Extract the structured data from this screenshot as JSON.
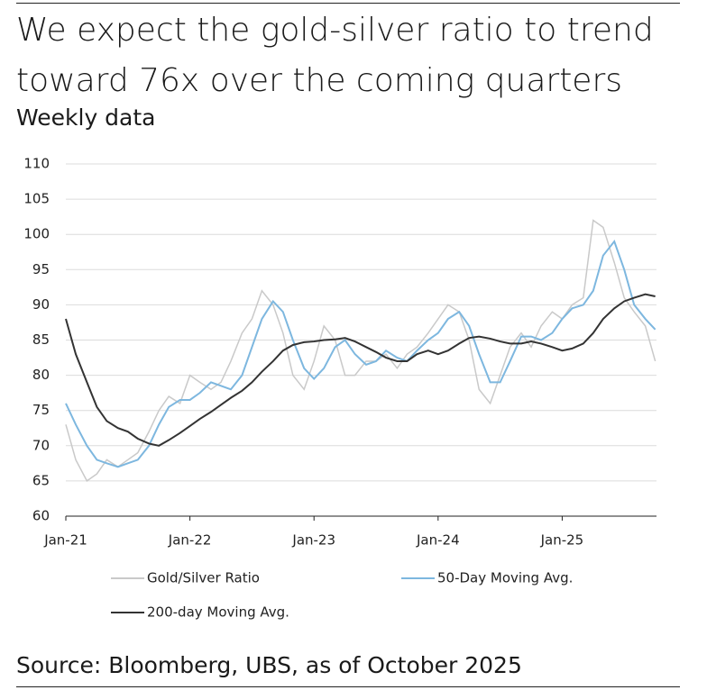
{
  "chart_data": {
    "type": "line",
    "title": "We expect the gold-silver ratio to trend toward 76x over the coming quarters",
    "subtitle": "Weekly data",
    "source": "Source: Bloomberg, UBS, as of October 2025",
    "x": [
      2021.0,
      2021.08,
      2021.17,
      2021.25,
      2021.33,
      2021.42,
      2021.5,
      2021.58,
      2021.67,
      2021.75,
      2021.83,
      2021.92,
      2022.0,
      2022.08,
      2022.17,
      2022.25,
      2022.33,
      2022.42,
      2022.5,
      2022.58,
      2022.67,
      2022.75,
      2022.83,
      2022.92,
      2023.0,
      2023.08,
      2023.17,
      2023.25,
      2023.33,
      2023.42,
      2023.5,
      2023.58,
      2023.67,
      2023.75,
      2023.83,
      2023.92,
      2024.0,
      2024.08,
      2024.17,
      2024.25,
      2024.33,
      2024.42,
      2024.5,
      2024.58,
      2024.67,
      2024.75,
      2024.83,
      2024.92,
      2025.0,
      2025.08,
      2025.17,
      2025.25,
      2025.33,
      2025.42,
      2025.5,
      2025.58,
      2025.67,
      2025.75
    ],
    "series": [
      {
        "name": "Gold/Silver Ratio",
        "color": "#c9c9c9",
        "values": [
          73,
          68,
          65,
          66,
          68,
          67,
          68,
          69,
          72,
          75,
          77,
          76,
          80,
          79,
          78,
          79,
          82,
          86,
          88,
          92,
          90,
          86,
          80,
          78,
          82,
          87,
          85,
          80,
          80,
          82,
          82,
          83,
          81,
          83,
          84,
          86,
          88,
          90,
          89,
          85,
          78,
          76,
          80,
          84,
          86,
          84,
          87,
          89,
          88,
          90,
          91,
          102,
          101,
          96,
          91,
          89,
          87,
          82
        ]
      },
      {
        "name": "50-Day Moving Avg.",
        "color": "#7db7df",
        "values": [
          76,
          73,
          70,
          68,
          67.5,
          67,
          67.5,
          68,
          70,
          73,
          75.5,
          76.5,
          76.5,
          77.5,
          79,
          78.5,
          78,
          80,
          84,
          88,
          90.5,
          89,
          85,
          81,
          79.5,
          81,
          84,
          85,
          83,
          81.5,
          82,
          83.5,
          82.5,
          82,
          83.5,
          85,
          86,
          88,
          89,
          87,
          83,
          79,
          79,
          82,
          85.5,
          85.5,
          85,
          86,
          88,
          89.5,
          90,
          92,
          97,
          99,
          95,
          90,
          88,
          86.5
        ]
      },
      {
        "name": "200-day Moving Avg.",
        "color": "#333333",
        "values": [
          88,
          83,
          79,
          75.5,
          73.5,
          72.5,
          72,
          71,
          70.3,
          70,
          70.8,
          71.8,
          72.8,
          73.8,
          74.8,
          75.8,
          76.8,
          77.8,
          79,
          80.5,
          82,
          83.5,
          84.3,
          84.7,
          84.8,
          85,
          85.1,
          85.3,
          84.8,
          84,
          83.3,
          82.5,
          82,
          82,
          83,
          83.5,
          83,
          83.5,
          84.5,
          85.3,
          85.5,
          85.2,
          84.8,
          84.5,
          84.5,
          84.8,
          84.5,
          84,
          83.5,
          83.8,
          84.5,
          86,
          88,
          89.5,
          90.5,
          91,
          91.5,
          91.2
        ]
      }
    ],
    "xlim": [
      2021,
      2025.76
    ],
    "xticks": [
      {
        "value": 2021,
        "label": "Jan-21"
      },
      {
        "value": 2022,
        "label": "Jan-22"
      },
      {
        "value": 2023,
        "label": "Jan-23"
      },
      {
        "value": 2024,
        "label": "Jan-24"
      },
      {
        "value": 2025,
        "label": "Jan-25"
      }
    ],
    "ylim": [
      60,
      110
    ],
    "yticks": [
      60,
      65,
      70,
      75,
      80,
      85,
      90,
      95,
      100,
      105,
      110
    ],
    "grid": true,
    "legend": "bottom"
  }
}
